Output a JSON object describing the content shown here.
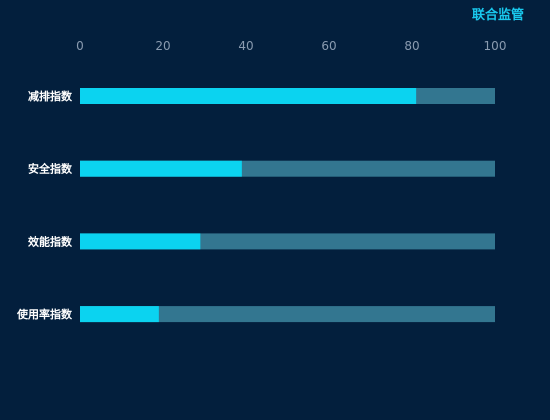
{
  "header": {
    "title": "联合监管"
  },
  "colors": {
    "background": "#031f3d",
    "bar": "#0bd3f0",
    "track": "#337690",
    "tick_text": "#8a9bb0",
    "label_text": "#ffffff",
    "title": "#19c9ee"
  },
  "chart_data": {
    "type": "bar",
    "orientation": "horizontal",
    "categories": [
      "减排指数",
      "安全指数",
      "效能指数",
      "使用率指数"
    ],
    "values": [
      81,
      39,
      29,
      19
    ],
    "max": [
      100,
      100,
      100,
      100
    ],
    "xlim": [
      0,
      100
    ],
    "xticks": [
      "0",
      "20",
      "40",
      "60",
      "80",
      "100"
    ],
    "axis_position": "top",
    "grid": false,
    "title": "",
    "xlabel": "",
    "ylabel": ""
  }
}
